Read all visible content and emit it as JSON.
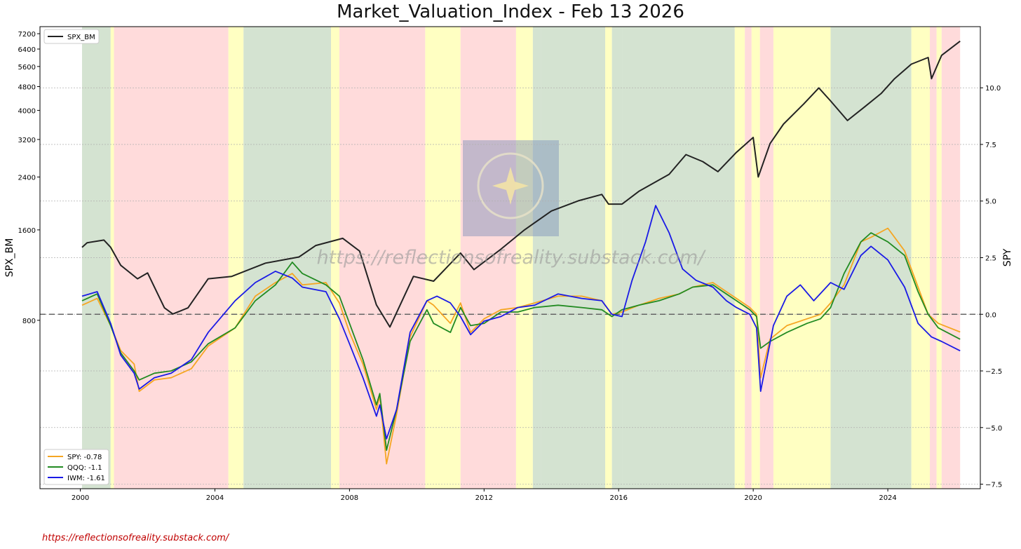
{
  "chart_data": {
    "type": "line",
    "title": "Market_Valuation_Index  - Feb 13 2026",
    "ylabel_left": "SPX_BM",
    "ylabel_right": "SPY",
    "xlabel": "",
    "x_range": [
      1998.8,
      2026.75
    ],
    "y_left_scale": "log",
    "y_left_range": [
      220,
      7600
    ],
    "y_left_ticks": [
      800,
      1600,
      2400,
      3200,
      4000,
      4800,
      5600,
      6400,
      7200
    ],
    "y_right_range": [
      -7.7,
      12.7
    ],
    "y_right_ticks": [
      -7.5,
      -5.0,
      -2.5,
      0.0,
      2.5,
      5.0,
      7.5,
      10.0
    ],
    "x_ticks": [
      2000,
      2004,
      2008,
      2012,
      2016,
      2020,
      2024
    ],
    "zero_line": 0.0,
    "watermark": "https://reflectionsofreality.substack.com/",
    "regimes": [
      {
        "start": 2000.05,
        "end": 2000.9,
        "color": "green"
      },
      {
        "start": 2000.9,
        "end": 2001.0,
        "color": "yellow"
      },
      {
        "start": 2001.0,
        "end": 2004.4,
        "color": "red"
      },
      {
        "start": 2004.4,
        "end": 2004.85,
        "color": "yellow"
      },
      {
        "start": 2004.85,
        "end": 2007.45,
        "color": "green"
      },
      {
        "start": 2007.45,
        "end": 2007.7,
        "color": "yellow"
      },
      {
        "start": 2007.7,
        "end": 2010.25,
        "color": "red"
      },
      {
        "start": 2010.25,
        "end": 2011.3,
        "color": "yellow"
      },
      {
        "start": 2011.3,
        "end": 2012.95,
        "color": "red"
      },
      {
        "start": 2012.95,
        "end": 2013.45,
        "color": "yellow"
      },
      {
        "start": 2013.45,
        "end": 2013.7,
        "color": "green"
      },
      {
        "start": 2013.7,
        "end": 2015.6,
        "color": "green"
      },
      {
        "start": 2015.6,
        "end": 2015.8,
        "color": "yellow"
      },
      {
        "start": 2015.8,
        "end": 2016.1,
        "color": "green"
      },
      {
        "start": 2016.1,
        "end": 2019.45,
        "color": "green"
      },
      {
        "start": 2019.45,
        "end": 2019.75,
        "color": "yellow"
      },
      {
        "start": 2019.75,
        "end": 2019.95,
        "color": "red"
      },
      {
        "start": 2019.95,
        "end": 2020.2,
        "color": "yellow"
      },
      {
        "start": 2020.2,
        "end": 2020.6,
        "color": "red"
      },
      {
        "start": 2020.6,
        "end": 2022.3,
        "color": "yellow"
      },
      {
        "start": 2022.3,
        "end": 2024.7,
        "color": "green"
      },
      {
        "start": 2024.7,
        "end": 2025.25,
        "color": "yellow"
      },
      {
        "start": 2025.25,
        "end": 2025.45,
        "color": "red"
      },
      {
        "start": 2025.45,
        "end": 2025.6,
        "color": "yellow"
      },
      {
        "start": 2025.6,
        "end": 2026.15,
        "color": "red"
      }
    ],
    "series": [
      {
        "name": "SPX_BM",
        "axis": "left",
        "color": "#222222",
        "legend": "SPX_BM",
        "x": [
          2000.05,
          2000.2,
          2000.7,
          2000.9,
          2001.2,
          2001.7,
          2002.0,
          2002.5,
          2002.75,
          2003.2,
          2003.8,
          2004.5,
          2005.5,
          2006.5,
          2007.0,
          2007.8,
          2008.3,
          2008.8,
          2009.2,
          2009.9,
          2010.5,
          2011.3,
          2011.7,
          2012.5,
          2013.2,
          2014.0,
          2014.8,
          2015.5,
          2015.7,
          2016.1,
          2016.6,
          2017.5,
          2018.0,
          2018.5,
          2018.95,
          2019.5,
          2020.0,
          2020.15,
          2020.5,
          2020.9,
          2021.5,
          2021.95,
          2022.3,
          2022.8,
          2023.3,
          2023.8,
          2024.2,
          2024.7,
          2025.2,
          2025.3,
          2025.6,
          2026.15
        ],
        "y": [
          1400,
          1450,
          1480,
          1400,
          1220,
          1100,
          1150,
          880,
          840,
          880,
          1100,
          1120,
          1240,
          1300,
          1420,
          1500,
          1360,
          900,
          760,
          1120,
          1080,
          1340,
          1180,
          1380,
          1600,
          1850,
          2000,
          2100,
          1950,
          1950,
          2150,
          2450,
          2850,
          2700,
          2500,
          2900,
          3250,
          2400,
          3100,
          3600,
          4200,
          4750,
          4300,
          3700,
          4100,
          4550,
          5100,
          5700,
          6000,
          5100,
          6100,
          6800
        ]
      },
      {
        "name": "SPY",
        "axis": "right",
        "color": "#f5a623",
        "legend": "SPY: -0.78",
        "x": [
          2000.05,
          2000.5,
          2000.9,
          2001.2,
          2001.6,
          2001.75,
          2002.2,
          2002.7,
          2003.3,
          2003.8,
          2004.6,
          2005.2,
          2005.8,
          2006.3,
          2006.6,
          2007.3,
          2007.7,
          2008.0,
          2008.4,
          2008.8,
          2008.9,
          2009.1,
          2009.4,
          2009.8,
          2010.3,
          2010.5,
          2011.0,
          2011.3,
          2011.6,
          2012.0,
          2012.5,
          2013.0,
          2013.5,
          2014.2,
          2014.9,
          2015.5,
          2015.8,
          2016.1,
          2016.6,
          2017.2,
          2017.8,
          2018.2,
          2018.8,
          2019.1,
          2019.5,
          2019.9,
          2020.1,
          2020.22,
          2020.5,
          2021.0,
          2021.6,
          2022.0,
          2022.3,
          2022.7,
          2023.2,
          2023.5,
          2024.0,
          2024.5,
          2024.9,
          2025.2,
          2025.5,
          2026.15
        ],
        "y": [
          0.4,
          0.7,
          -0.5,
          -1.6,
          -2.2,
          -3.4,
          -2.9,
          -2.8,
          -2.4,
          -1.4,
          -0.6,
          0.8,
          1.4,
          1.8,
          1.3,
          1.4,
          0.5,
          -0.8,
          -2.2,
          -4.2,
          -3.6,
          -6.6,
          -4.4,
          -1.0,
          0.6,
          0.4,
          -0.4,
          0.5,
          -0.8,
          -0.2,
          0.2,
          0.3,
          0.5,
          0.8,
          0.8,
          0.6,
          0.0,
          0.1,
          0.4,
          0.7,
          0.9,
          1.2,
          1.4,
          1.1,
          0.7,
          0.3,
          0.0,
          -2.8,
          -1.1,
          -0.5,
          -0.2,
          0.0,
          0.5,
          1.3,
          3.2,
          3.4,
          3.8,
          2.8,
          1.2,
          0.0,
          -0.4,
          -0.78
        ]
      },
      {
        "name": "QQQ",
        "axis": "right",
        "color": "#228b22",
        "legend": "QQQ: -1.1",
        "x": [
          2000.05,
          2000.5,
          2000.9,
          2001.2,
          2001.6,
          2001.75,
          2002.2,
          2002.7,
          2003.3,
          2003.8,
          2004.6,
          2005.2,
          2005.8,
          2006.3,
          2006.6,
          2007.3,
          2007.7,
          2008.0,
          2008.4,
          2008.8,
          2008.9,
          2009.1,
          2009.4,
          2009.8,
          2010.3,
          2010.5,
          2011.0,
          2011.3,
          2011.6,
          2012.0,
          2012.5,
          2013.0,
          2013.5,
          2014.2,
          2014.9,
          2015.5,
          2015.8,
          2016.1,
          2016.6,
          2017.2,
          2017.8,
          2018.2,
          2018.8,
          2019.1,
          2019.5,
          2019.9,
          2020.1,
          2020.22,
          2020.5,
          2021.0,
          2021.6,
          2022.0,
          2022.3,
          2022.7,
          2023.2,
          2023.5,
          2024.0,
          2024.5,
          2024.9,
          2025.2,
          2025.5,
          2026.15
        ],
        "y": [
          0.6,
          0.9,
          -0.5,
          -1.7,
          -2.5,
          -2.9,
          -2.6,
          -2.5,
          -2.1,
          -1.3,
          -0.6,
          0.6,
          1.3,
          2.3,
          1.8,
          1.3,
          0.8,
          -0.4,
          -2.0,
          -4.0,
          -3.5,
          -6.0,
          -4.2,
          -1.2,
          0.2,
          -0.4,
          -0.8,
          0.3,
          -0.5,
          -0.4,
          0.1,
          0.1,
          0.3,
          0.4,
          0.3,
          0.2,
          -0.1,
          0.2,
          0.4,
          0.6,
          0.9,
          1.2,
          1.3,
          1.0,
          0.6,
          0.2,
          -0.1,
          -1.5,
          -1.2,
          -0.8,
          -0.4,
          -0.2,
          0.3,
          1.8,
          3.2,
          3.6,
          3.2,
          2.6,
          1.0,
          0.0,
          -0.6,
          -1.1
        ]
      },
      {
        "name": "IWM",
        "axis": "right",
        "color": "#1a1ae6",
        "legend": "IWM: -1.61",
        "x": [
          2000.05,
          2000.5,
          2000.9,
          2001.2,
          2001.6,
          2001.75,
          2002.2,
          2002.7,
          2003.3,
          2003.8,
          2004.6,
          2005.2,
          2005.8,
          2006.3,
          2006.6,
          2007.3,
          2007.7,
          2008.0,
          2008.4,
          2008.8,
          2008.9,
          2009.1,
          2009.4,
          2009.8,
          2010.3,
          2010.6,
          2011.0,
          2011.3,
          2011.6,
          2012.0,
          2012.5,
          2013.0,
          2013.5,
          2014.2,
          2014.9,
          2015.5,
          2015.8,
          2016.1,
          2016.4,
          2016.8,
          2017.1,
          2017.5,
          2017.9,
          2018.3,
          2018.8,
          2019.2,
          2019.5,
          2019.9,
          2020.1,
          2020.22,
          2020.6,
          2021.0,
          2021.4,
          2021.8,
          2022.3,
          2022.7,
          2023.2,
          2023.5,
          2024.0,
          2024.5,
          2024.9,
          2025.3,
          2025.6,
          2026.15
        ],
        "y": [
          0.8,
          1.0,
          -0.4,
          -1.8,
          -2.6,
          -3.3,
          -2.8,
          -2.6,
          -2.0,
          -0.8,
          0.6,
          1.4,
          1.9,
          1.6,
          1.2,
          1.0,
          -0.2,
          -1.3,
          -2.8,
          -4.5,
          -4.0,
          -5.5,
          -4.2,
          -0.8,
          0.6,
          0.8,
          0.5,
          -0.1,
          -0.9,
          -0.3,
          -0.1,
          0.3,
          0.4,
          0.9,
          0.7,
          0.6,
          0.0,
          -0.1,
          1.5,
          3.2,
          4.8,
          3.6,
          2.0,
          1.5,
          1.2,
          0.6,
          0.3,
          0.0,
          -0.6,
          -3.4,
          -0.5,
          0.8,
          1.3,
          0.6,
          1.4,
          1.1,
          2.6,
          3.0,
          2.4,
          1.2,
          -0.4,
          -1.0,
          -1.2,
          -1.61
        ]
      }
    ]
  },
  "legend_top": {
    "items": [
      "SPX_BM"
    ]
  },
  "legend_bottom": {
    "items": [
      "SPY: -0.78",
      "QQQ: -1.1",
      "IWM: -1.61"
    ]
  },
  "footer": {
    "link_text": "https://reflectionsofreality.substack.com/"
  }
}
